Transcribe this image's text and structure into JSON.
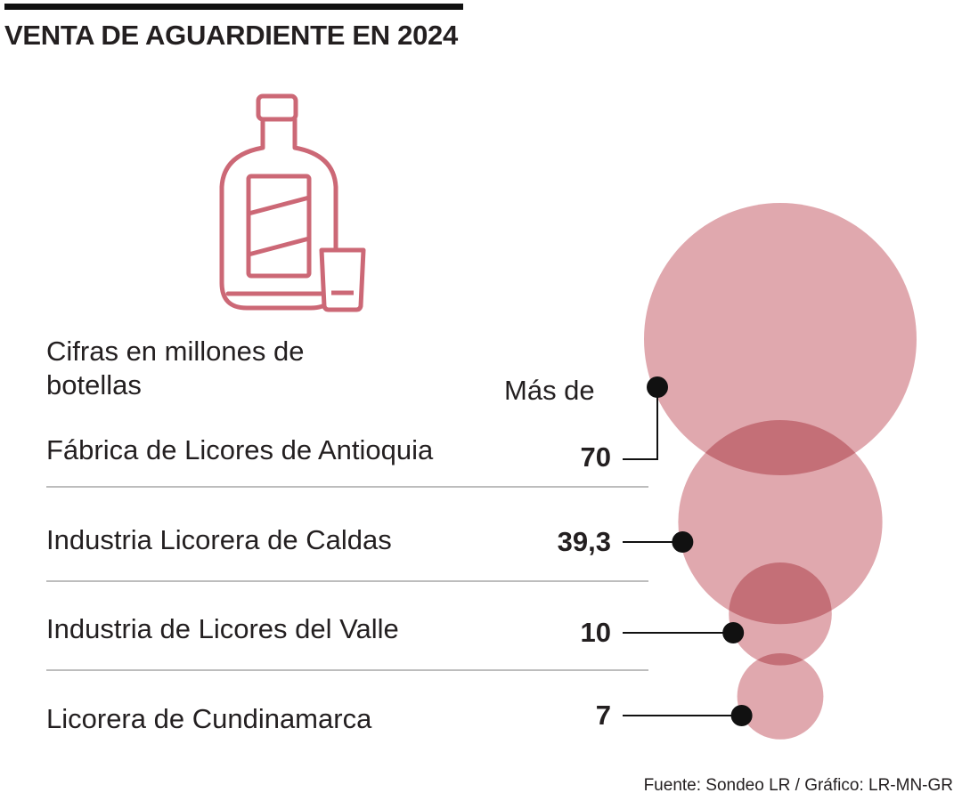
{
  "header": {
    "title": "VENTA DE AGUARDIENTE EN 2024"
  },
  "icon": "liquor-bottle-with-glass-icon",
  "colors": {
    "bubble": "#d9959c",
    "icon": "#cc6876",
    "line": "#111111",
    "divider": "#bdbdbd"
  },
  "chart_data": {
    "type": "bubble",
    "unit_label": "Cifras en millones de botellas",
    "value_prefix": "Más de",
    "series": [
      {
        "name": "Fábrica de Licores de Antioquia",
        "value": 70,
        "value_label": "70"
      },
      {
        "name": "Industria Licorera de Caldas",
        "value": 39.3,
        "value_label": "39,3"
      },
      {
        "name": "Industria de Licores del Valle",
        "value": 10,
        "value_label": "10"
      },
      {
        "name": "Licorera de Cundinamarca",
        "value": 7,
        "value_label": "7"
      }
    ]
  },
  "footer": {
    "source": "Fuente: Sondeo LR / Gráfico: LR-MN-GR"
  }
}
